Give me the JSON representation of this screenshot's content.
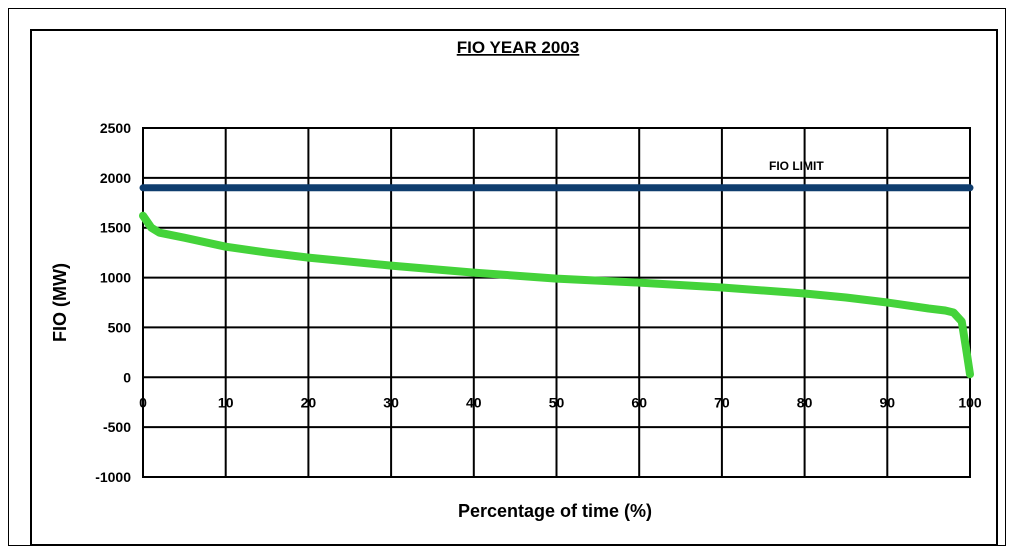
{
  "chart_data": {
    "type": "line",
    "title": "FIO YEAR 2003",
    "xlabel": "Percentage of time (%)",
    "ylabel": "FIO (MW)",
    "xlim": [
      0,
      100
    ],
    "ylim": [
      -1000,
      2500
    ],
    "x_ticks": [
      0,
      10,
      20,
      30,
      40,
      50,
      60,
      70,
      80,
      90,
      100
    ],
    "y_ticks": [
      2500,
      2000,
      1500,
      1000,
      500,
      0,
      -500,
      -1000
    ],
    "grid": true,
    "series": [
      {
        "label": "",
        "color": "#0f3d6e",
        "x": [
          0,
          100
        ],
        "y": [
          1900,
          1900
        ]
      },
      {
        "label": "",
        "color": "#44d33a",
        "x": [
          0,
          1,
          2,
          5,
          10,
          15,
          20,
          30,
          40,
          50,
          60,
          70,
          80,
          85,
          90,
          95,
          97,
          98,
          99,
          99.5,
          100
        ],
        "y": [
          1620,
          1500,
          1450,
          1400,
          1310,
          1250,
          1200,
          1120,
          1050,
          990,
          950,
          900,
          840,
          800,
          750,
          690,
          670,
          650,
          560,
          300,
          30
        ]
      }
    ],
    "annotations": [
      {
        "text": "FIO LIMIT",
        "x": 79,
        "y": 2120
      }
    ]
  }
}
